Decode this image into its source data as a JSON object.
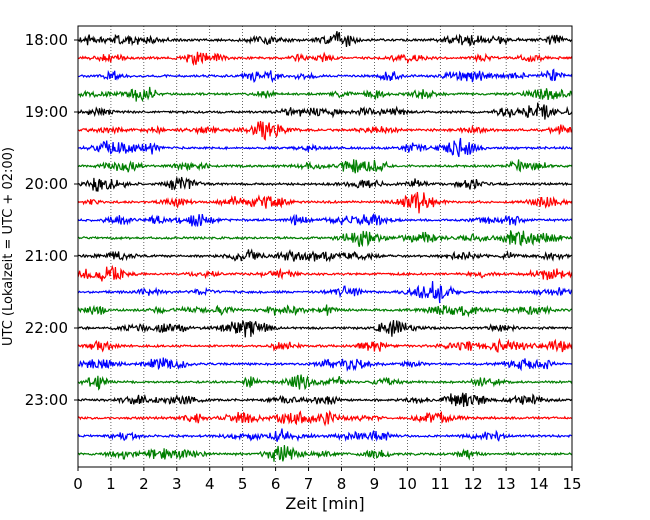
{
  "chart_data": {
    "type": "line",
    "title": "",
    "xlabel": "Zeit  [min]",
    "ylabel": "UTC (Lokalzeit = UTC + 02:00)",
    "xlim": [
      0,
      15
    ],
    "x_ticks": [
      0,
      1,
      2,
      3,
      4,
      5,
      6,
      7,
      8,
      9,
      10,
      11,
      12,
      13,
      14,
      15
    ],
    "y_ticks": [
      "18:00",
      "19:00",
      "20:00",
      "21:00",
      "22:00",
      "23:00"
    ],
    "grid": "vertical-dotted",
    "row_minutes": 15,
    "row_start": "18:00",
    "row_end": "23:45",
    "row_colors": [
      "#000000",
      "#ff0000",
      "#0000ff",
      "#007f00"
    ]
  }
}
